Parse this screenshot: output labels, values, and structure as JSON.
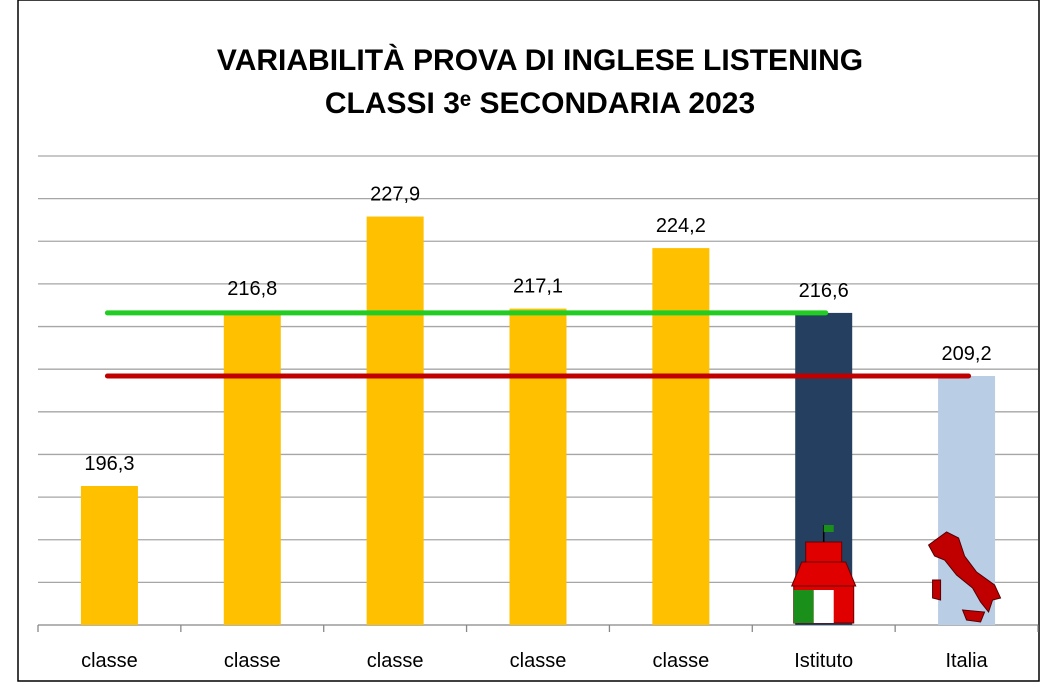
{
  "chart_data": {
    "type": "bar",
    "title": [
      "VARIABILITÀ PROVA DI INGLESE LISTENING",
      "CLASSI 3ᵉ SECONDARIA 2023"
    ],
    "categories": [
      "classe",
      "classe",
      "classe",
      "classe",
      "classe",
      "Istituto",
      "Italia"
    ],
    "values": [
      196.3,
      216.8,
      227.9,
      217.1,
      224.2,
      216.6,
      209.2
    ],
    "value_labels": [
      "196,3",
      "216,8",
      "227,9",
      "217,1",
      "224,2",
      "216,6",
      "209,2"
    ],
    "colors": [
      "#ffc000",
      "#ffc000",
      "#ffc000",
      "#ffc000",
      "#ffc000",
      "#243f60",
      "#b9cde5"
    ],
    "reference_lines": [
      {
        "value": 216.6,
        "color": "#22cc22"
      },
      {
        "value": 209.2,
        "color": "#c00000"
      }
    ],
    "ylim": [
      180,
      235
    ],
    "yticks": [
      180,
      185,
      190,
      195,
      200,
      205,
      210,
      215,
      220,
      225,
      230,
      235
    ],
    "grid": true
  }
}
